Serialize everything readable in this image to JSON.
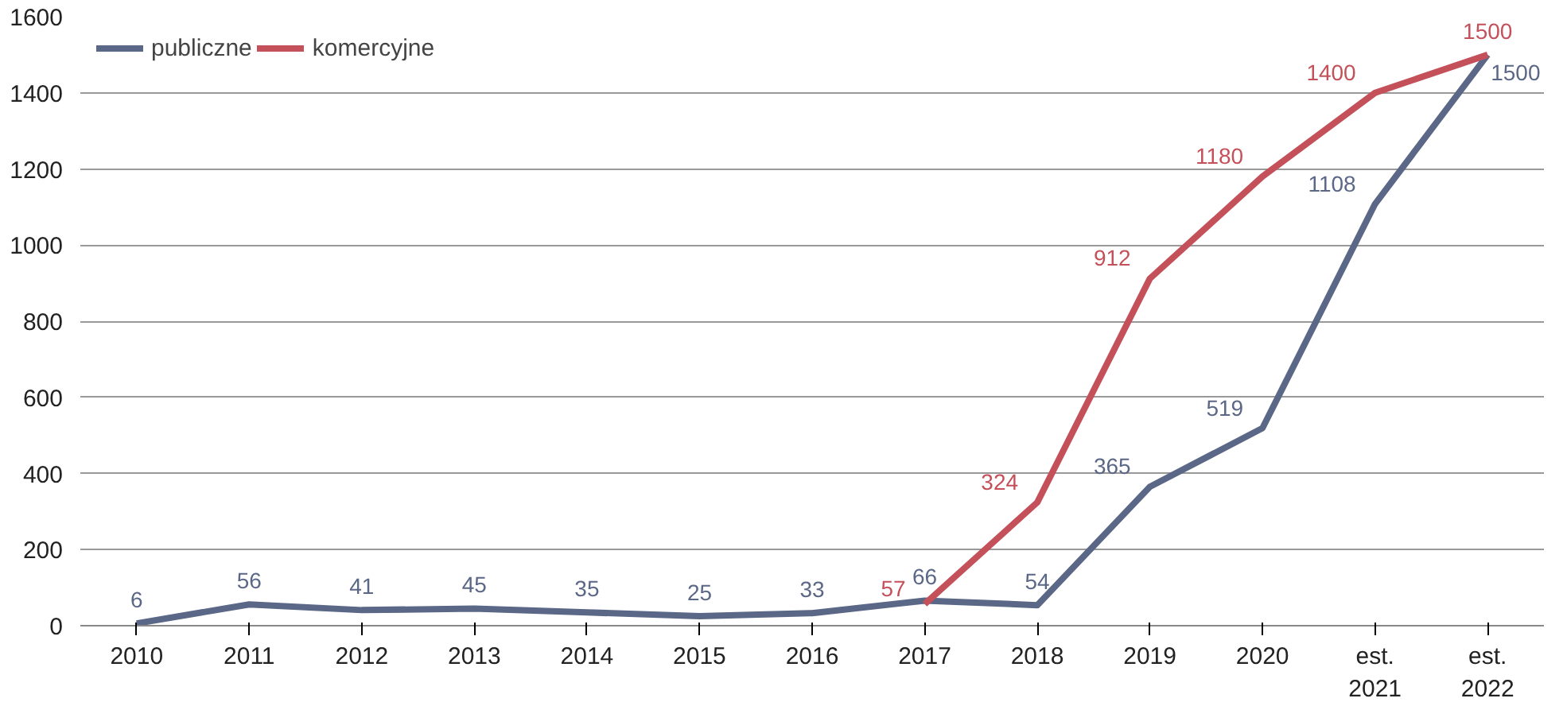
{
  "chart_data": {
    "type": "line",
    "categories": [
      "2010",
      "2011",
      "2012",
      "2013",
      "2014",
      "2015",
      "2016",
      "2017",
      "2018",
      "2019",
      "2020",
      "est.\n2021",
      "est.\n2022"
    ],
    "series": [
      {
        "name": "publiczne",
        "color": "#5b6786",
        "values": [
          6,
          56,
          41,
          45,
          35,
          25,
          33,
          66,
          54,
          365,
          519,
          1108,
          1500
        ]
      },
      {
        "name": "komercyjne",
        "color": "#c4505a",
        "values": [
          null,
          null,
          null,
          null,
          null,
          null,
          null,
          57,
          324,
          912,
          1180,
          1400,
          1500
        ]
      }
    ],
    "ylim": [
      0,
      1600
    ],
    "yticks": [
      0,
      200,
      400,
      600,
      800,
      1000,
      1200,
      1400,
      1600
    ],
    "grid": "y",
    "legend": "top left",
    "data_labels": true,
    "line_style": "solid"
  }
}
